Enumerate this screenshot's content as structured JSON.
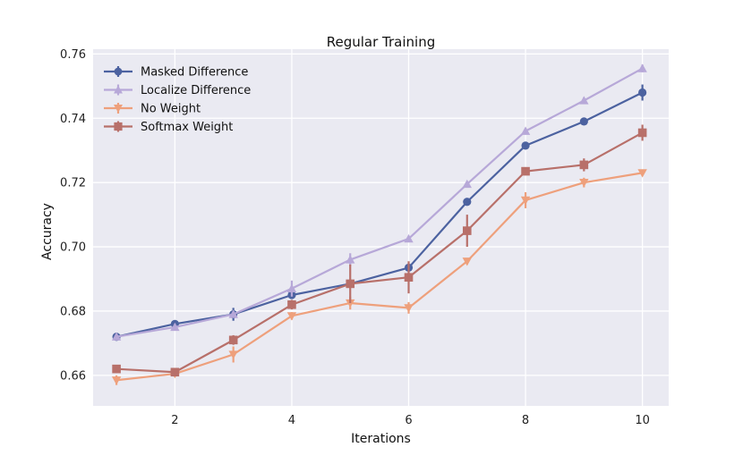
{
  "chart_data": {
    "type": "line",
    "title": "Regular Training",
    "xlabel": "Iterations",
    "ylabel": "Accuracy",
    "xlim": [
      0.6,
      10.45
    ],
    "ylim": [
      0.6505,
      0.7615
    ],
    "xticks": [
      2,
      4,
      6,
      8,
      10
    ],
    "xtick_labels": [
      "2",
      "4",
      "6",
      "8",
      "10"
    ],
    "yticks": [
      0.66,
      0.68,
      0.7,
      0.72,
      0.74,
      0.76
    ],
    "ytick_labels": [
      "0.66",
      "0.68",
      "0.70",
      "0.72",
      "0.74",
      "0.76"
    ],
    "grid": true,
    "legend_position": "top-left",
    "x": [
      1,
      2,
      3,
      4,
      5,
      6,
      7,
      8,
      9,
      10
    ],
    "series": [
      {
        "name": "Masked Difference",
        "color": "#4c62a0",
        "marker": "circle",
        "values": [
          0.672,
          0.676,
          0.679,
          0.685,
          0.6885,
          0.6935,
          0.714,
          0.7315,
          0.739,
          0.748
        ],
        "errors": [
          0.0012,
          0.001,
          0.002,
          0.001,
          0.001,
          0.0008,
          0.001,
          0.001,
          0.001,
          0.0025
        ]
      },
      {
        "name": "Localize Difference",
        "color": "#b7a8d8",
        "marker": "triangle-up",
        "values": [
          0.672,
          0.675,
          0.679,
          0.687,
          0.696,
          0.7025,
          0.7195,
          0.736,
          0.7455,
          0.7555
        ],
        "errors": [
          0.001,
          0.001,
          0.001,
          0.0025,
          0.002,
          0.0008,
          0.0008,
          0.001,
          0.001,
          0.0012
        ]
      },
      {
        "name": "No Weight",
        "color": "#eea07c",
        "marker": "triangle-down",
        "values": [
          0.6585,
          0.6605,
          0.6665,
          0.6785,
          0.6825,
          0.681,
          0.6955,
          0.7145,
          0.72,
          0.723
        ],
        "errors": [
          0.0015,
          0.001,
          0.0025,
          0.0012,
          0.002,
          0.0018,
          0.001,
          0.0025,
          0.0015,
          0.0008
        ]
      },
      {
        "name": "Softmax Weight",
        "color": "#b8706a",
        "marker": "square",
        "values": [
          0.662,
          0.661,
          0.671,
          0.682,
          0.6885,
          0.6905,
          0.705,
          0.7235,
          0.7255,
          0.7355
        ],
        "errors": [
          0.0012,
          0.0008,
          0.0015,
          0.0015,
          0.006,
          0.005,
          0.005,
          0.001,
          0.002,
          0.0025
        ]
      }
    ]
  }
}
